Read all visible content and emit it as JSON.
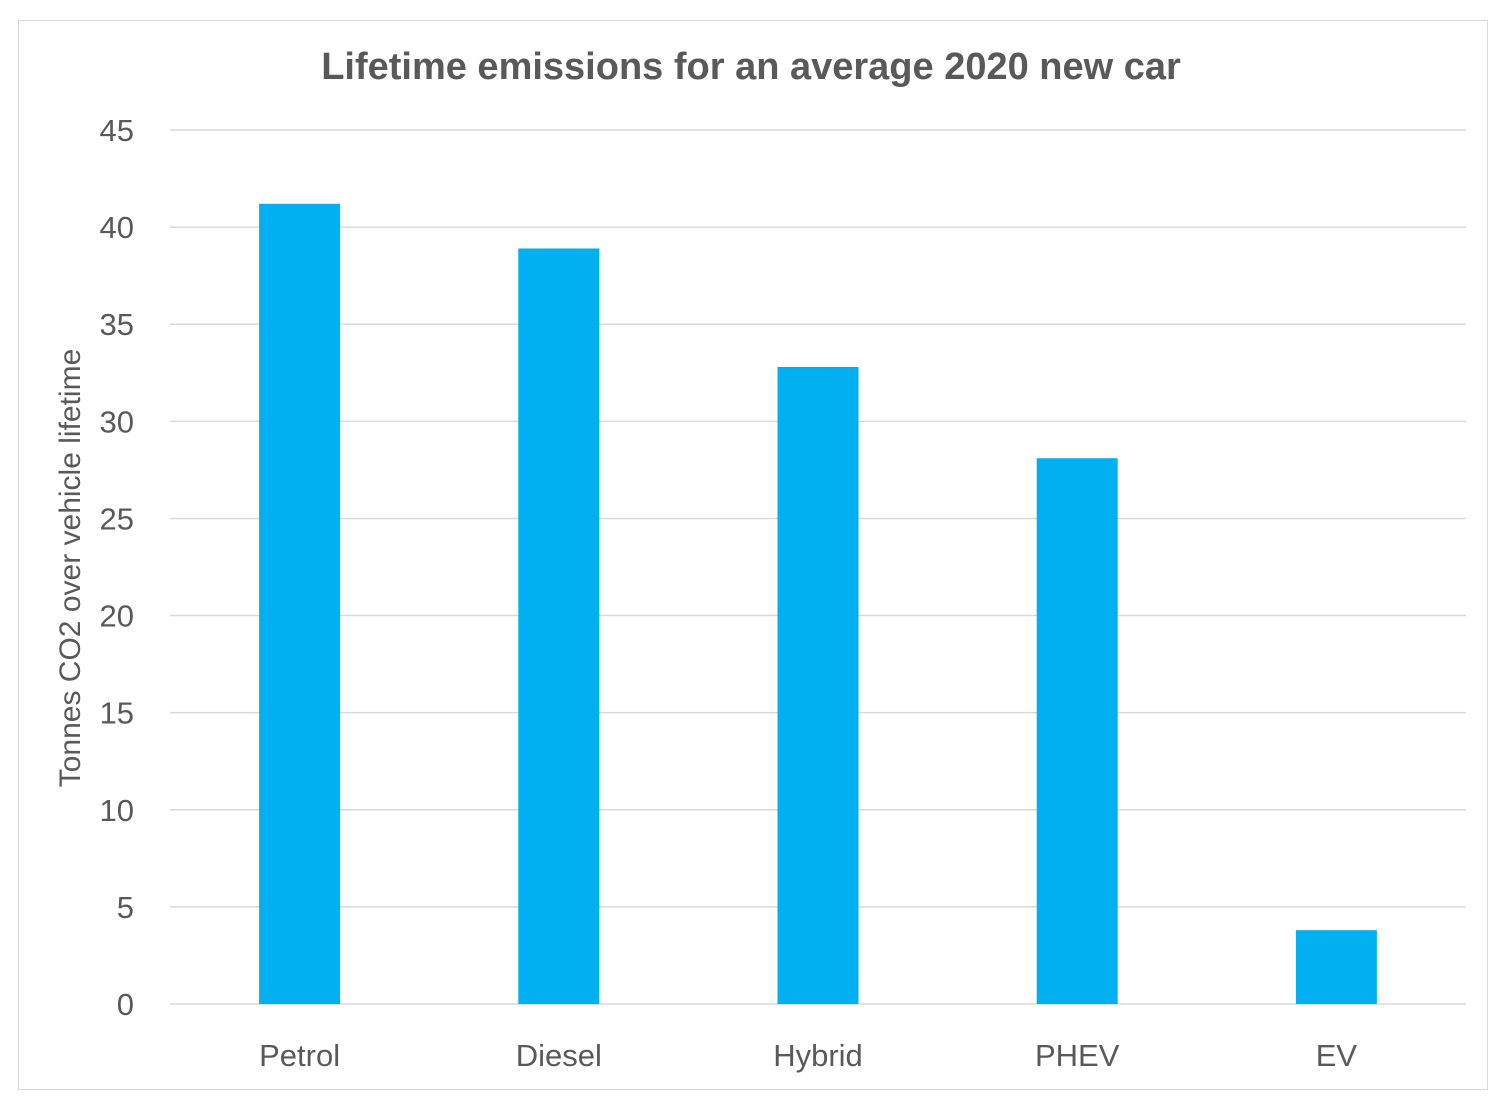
{
  "chart_data": {
    "type": "bar",
    "title": "Lifetime emissions for an average 2020 new car",
    "xlabel": "",
    "ylabel": "Tonnes CO2 over vehicle lifetime",
    "categories": [
      "Petrol",
      "Diesel",
      "Hybrid",
      "PHEV",
      "EV"
    ],
    "values": [
      41.2,
      38.9,
      32.8,
      28.1,
      3.8
    ],
    "ylim": [
      0,
      45
    ],
    "yticks": [
      0,
      5,
      10,
      15,
      20,
      25,
      30,
      35,
      40,
      45
    ],
    "bar_color": "#00B0F0",
    "grid": true,
    "legend": "none"
  }
}
